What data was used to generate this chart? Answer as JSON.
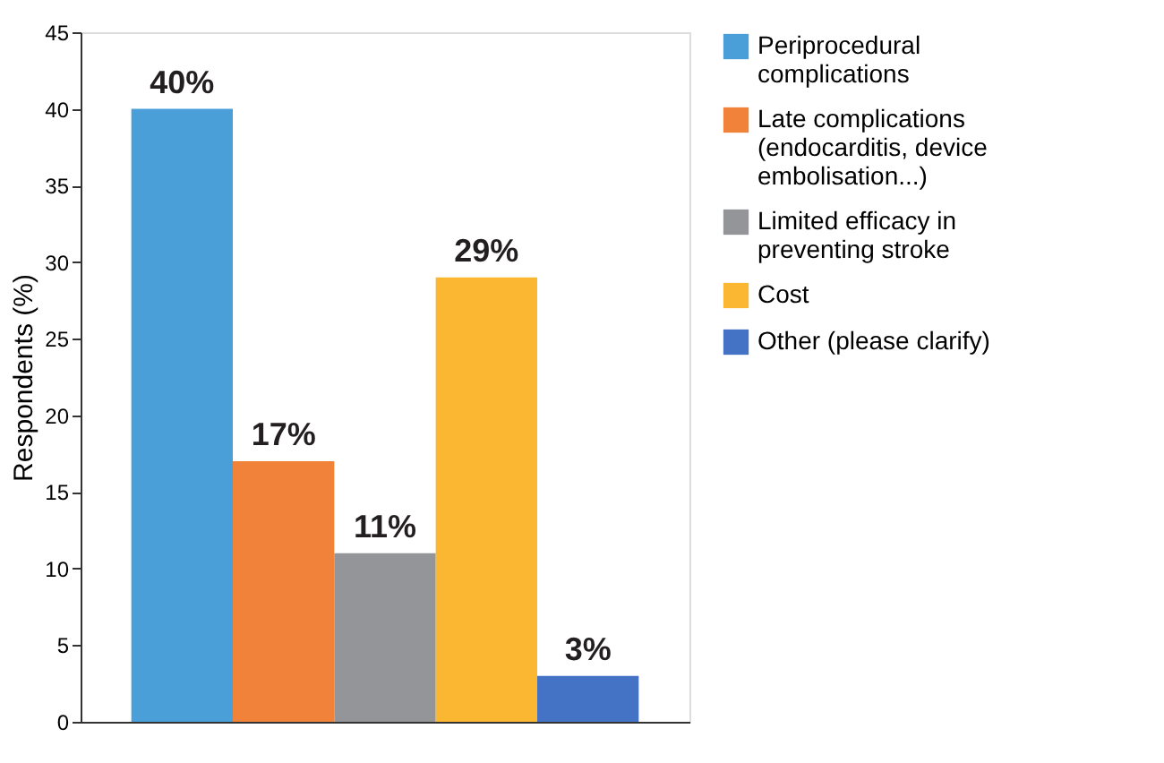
{
  "chart_data": {
    "type": "bar",
    "ylabel": "Respondents (%)",
    "categories": [
      null
    ],
    "series": [
      {
        "name": "Periprocedural complications",
        "color": "#4a9fd8",
        "values": [
          40
        ],
        "value_labels": [
          "40%"
        ]
      },
      {
        "name": "Late complications (endocarditis, device embolisation...)",
        "color": "#f0823a",
        "values": [
          17
        ],
        "value_labels": [
          "17%"
        ]
      },
      {
        "name": "Limited efficacy in preventing stroke",
        "color": "#939598",
        "values": [
          11
        ],
        "value_labels": [
          "11%"
        ]
      },
      {
        "name": "Cost",
        "color": "#fbb632",
        "values": [
          29
        ],
        "value_labels": [
          "29%"
        ]
      },
      {
        "name": "Other (please clarify)",
        "color": "#4472c4",
        "values": [
          3
        ],
        "value_labels": [
          "3%"
        ]
      }
    ],
    "ylim": [
      0,
      45
    ],
    "yticks": [
      0,
      5,
      10,
      15,
      20,
      25,
      30,
      35,
      40,
      45
    ],
    "grid": false,
    "legend": "right"
  }
}
